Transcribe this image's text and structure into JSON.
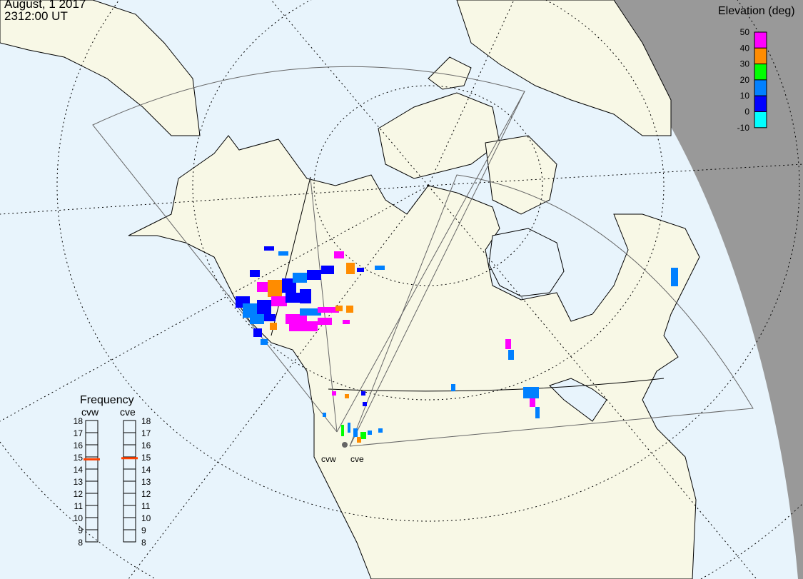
{
  "header": {
    "date": "August, 1 2017",
    "time": "2312:00 UT"
  },
  "colors": {
    "land": "#f8f8e6",
    "ocean": "#e8f4fc",
    "night": "#999999",
    "freq_marker": "#ff4000"
  },
  "legend": {
    "title": "Elevation (deg)",
    "ticks": [
      "50",
      "40",
      "30",
      "20",
      "10",
      "0",
      "-10"
    ],
    "bins": [
      {
        "range": "40-50",
        "color": "#ff00ff"
      },
      {
        "range": "30-40",
        "color": "#ff8c00"
      },
      {
        "range": "20-30",
        "color": "#00ff00"
      },
      {
        "range": "10-20",
        "color": "#0080ff"
      },
      {
        "range": "0-10",
        "color": "#0000ff"
      },
      {
        "range": "-10-0",
        "color": "#00ffff"
      }
    ]
  },
  "frequency": {
    "title": "Frequency",
    "ticks": [
      "18",
      "17",
      "16",
      "15",
      "14",
      "13",
      "12",
      "11",
      "10",
      "9",
      "8"
    ],
    "radars": [
      {
        "name": "cvw",
        "value_mhz": 14.8
      },
      {
        "name": "cve",
        "value_mhz": 14.9
      }
    ]
  },
  "sites": [
    {
      "label": "cvw"
    },
    {
      "label": "cve"
    }
  ]
}
